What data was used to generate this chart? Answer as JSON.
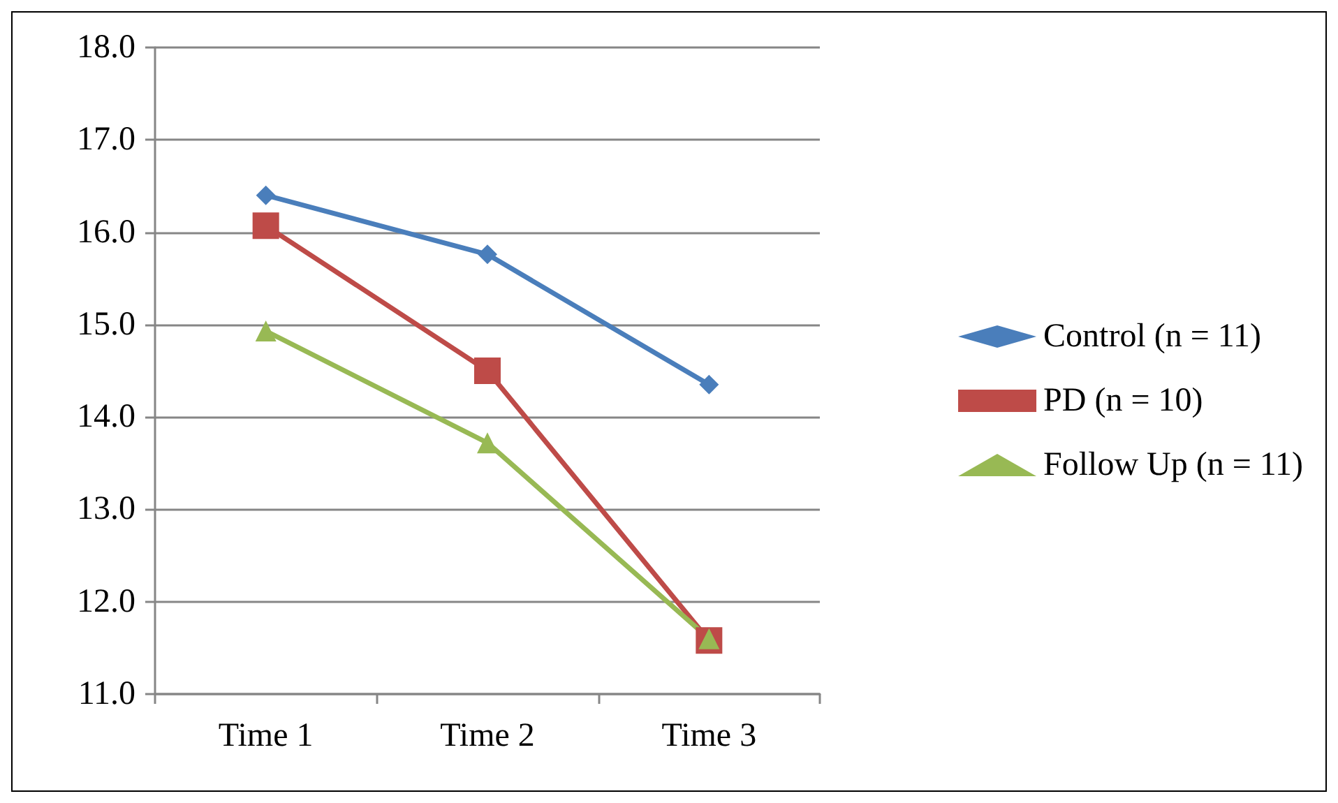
{
  "chart_data": {
    "type": "line",
    "categories": [
      "Time 1",
      "Time 2",
      "Time 3"
    ],
    "series": [
      {
        "name": "Control (n = 11)",
        "color": "#4a7ebb",
        "marker": "diamond",
        "values": [
          16.4,
          15.76,
          14.35
        ]
      },
      {
        "name": "PD (n = 10)",
        "color": "#be4b48",
        "marker": "square",
        "values": [
          16.07,
          14.5,
          11.58
        ]
      },
      {
        "name": "Follow Up (n = 11)",
        "color": "#98b954",
        "marker": "triangle",
        "values": [
          14.93,
          13.72,
          11.6
        ]
      }
    ],
    "ylim": [
      11,
      18
    ],
    "yticks": [
      {
        "value": 11,
        "label": "11.0"
      },
      {
        "value": 12,
        "label": "12.0"
      },
      {
        "value": 13,
        "label": "13.0"
      },
      {
        "value": 14,
        "label": "14.0"
      },
      {
        "value": 15,
        "label": "15.0"
      },
      {
        "value": 16,
        "label": "16.0"
      },
      {
        "value": 17,
        "label": "17.0"
      },
      {
        "value": 18,
        "label": "18.0"
      }
    ],
    "grid": "y",
    "legend": "right"
  }
}
